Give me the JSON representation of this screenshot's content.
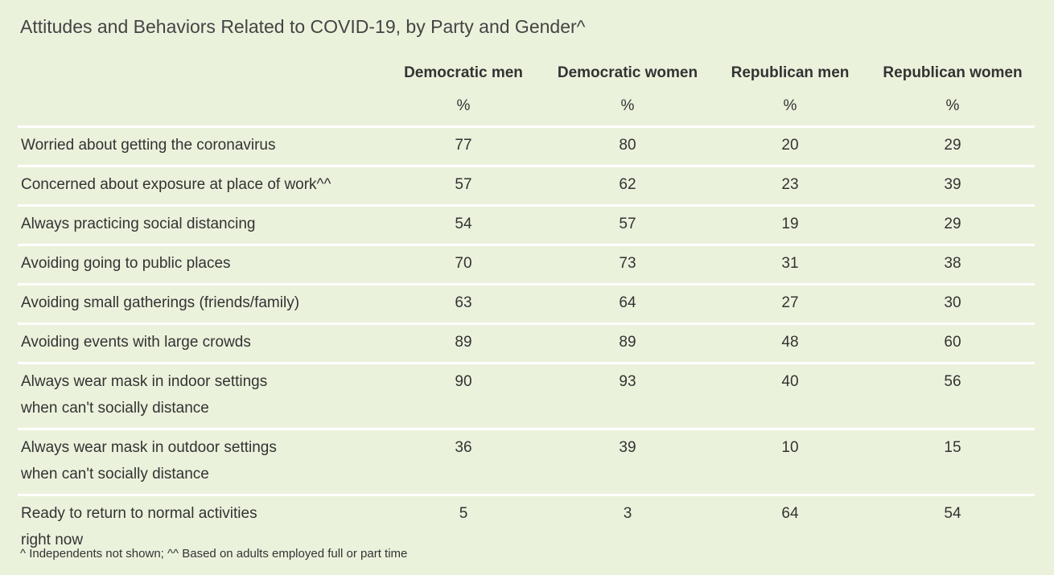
{
  "chart_data": {
    "type": "table",
    "title": "Attitudes and Behaviors Related to COVID-19, by Party and Gender^",
    "columns": [
      "Democratic men",
      "Democratic women",
      "Republican men",
      "Republican women"
    ],
    "unit": "%",
    "rows": [
      {
        "label": [
          "Worried about getting the coronavirus"
        ],
        "values": [
          "77",
          "80",
          "20",
          "29"
        ]
      },
      {
        "label": [
          "Concerned about exposure at place of work^^"
        ],
        "values": [
          "57",
          "62",
          "23",
          "39"
        ]
      },
      {
        "label": [
          "Always practicing social distancing"
        ],
        "values": [
          "54",
          "57",
          "19",
          "29"
        ]
      },
      {
        "label": [
          "Avoiding going to public places"
        ],
        "values": [
          "70",
          "73",
          "31",
          "38"
        ]
      },
      {
        "label": [
          "Avoiding small gatherings (friends/family)"
        ],
        "values": [
          "63",
          "64",
          "27",
          "30"
        ]
      },
      {
        "label": [
          "Avoiding events with large crowds"
        ],
        "values": [
          "89",
          "89",
          "48",
          "60"
        ]
      },
      {
        "label": [
          "Always wear mask in indoor settings",
          "when can't socially distance"
        ],
        "values": [
          "90",
          "93",
          "40",
          "56"
        ]
      },
      {
        "label": [
          "Always wear mask in outdoor settings",
          "when can't socially distance"
        ],
        "values": [
          "36",
          "39",
          "10",
          "15"
        ]
      },
      {
        "label": [
          "Ready to return to normal activities",
          "right now"
        ],
        "values": [
          "5",
          "3",
          "64",
          "54"
        ]
      }
    ],
    "footnote": "^ Independents not shown; ^^ Based on adults employed full or part time"
  },
  "colors": {
    "background": "#ebf2dc",
    "text": "#333333",
    "divider": "#ffffff"
  }
}
